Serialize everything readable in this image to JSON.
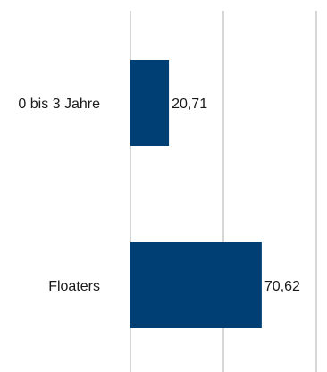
{
  "chart_data": {
    "type": "bar",
    "orientation": "horizontal",
    "categories": [
      "0 bis 3 Jahre",
      "Floaters"
    ],
    "values": [
      20.71,
      70.62
    ],
    "value_labels": [
      "20,71",
      "70,62"
    ],
    "xlim": [
      0,
      100
    ],
    "gridlines_at": [
      0,
      50,
      100
    ],
    "grid": true,
    "legend": "none",
    "bar_color": "#003f74",
    "grid_color": "#c8c8c8"
  }
}
